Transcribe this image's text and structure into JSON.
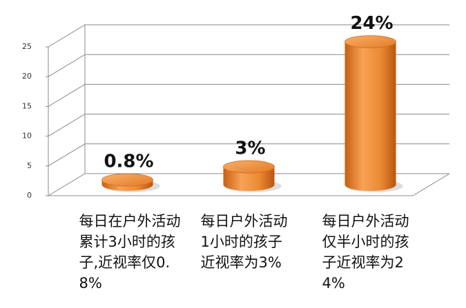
{
  "chart_data": {
    "type": "bar",
    "categories": [
      "每日在户外活动累计3小时的孩子,近视率仅0.8%",
      "每日户外活动1小时的孩子近视率为3%",
      "每日户外活动仅半小时的孩子近视率为24%"
    ],
    "values": [
      0.8,
      3,
      24
    ],
    "value_labels": [
      "0.8%",
      "3%",
      "24%"
    ],
    "color": "#f08a2c",
    "ylim": [
      0,
      25
    ],
    "yticks": [
      0,
      5,
      10,
      15,
      20,
      25
    ],
    "grid": true
  }
}
